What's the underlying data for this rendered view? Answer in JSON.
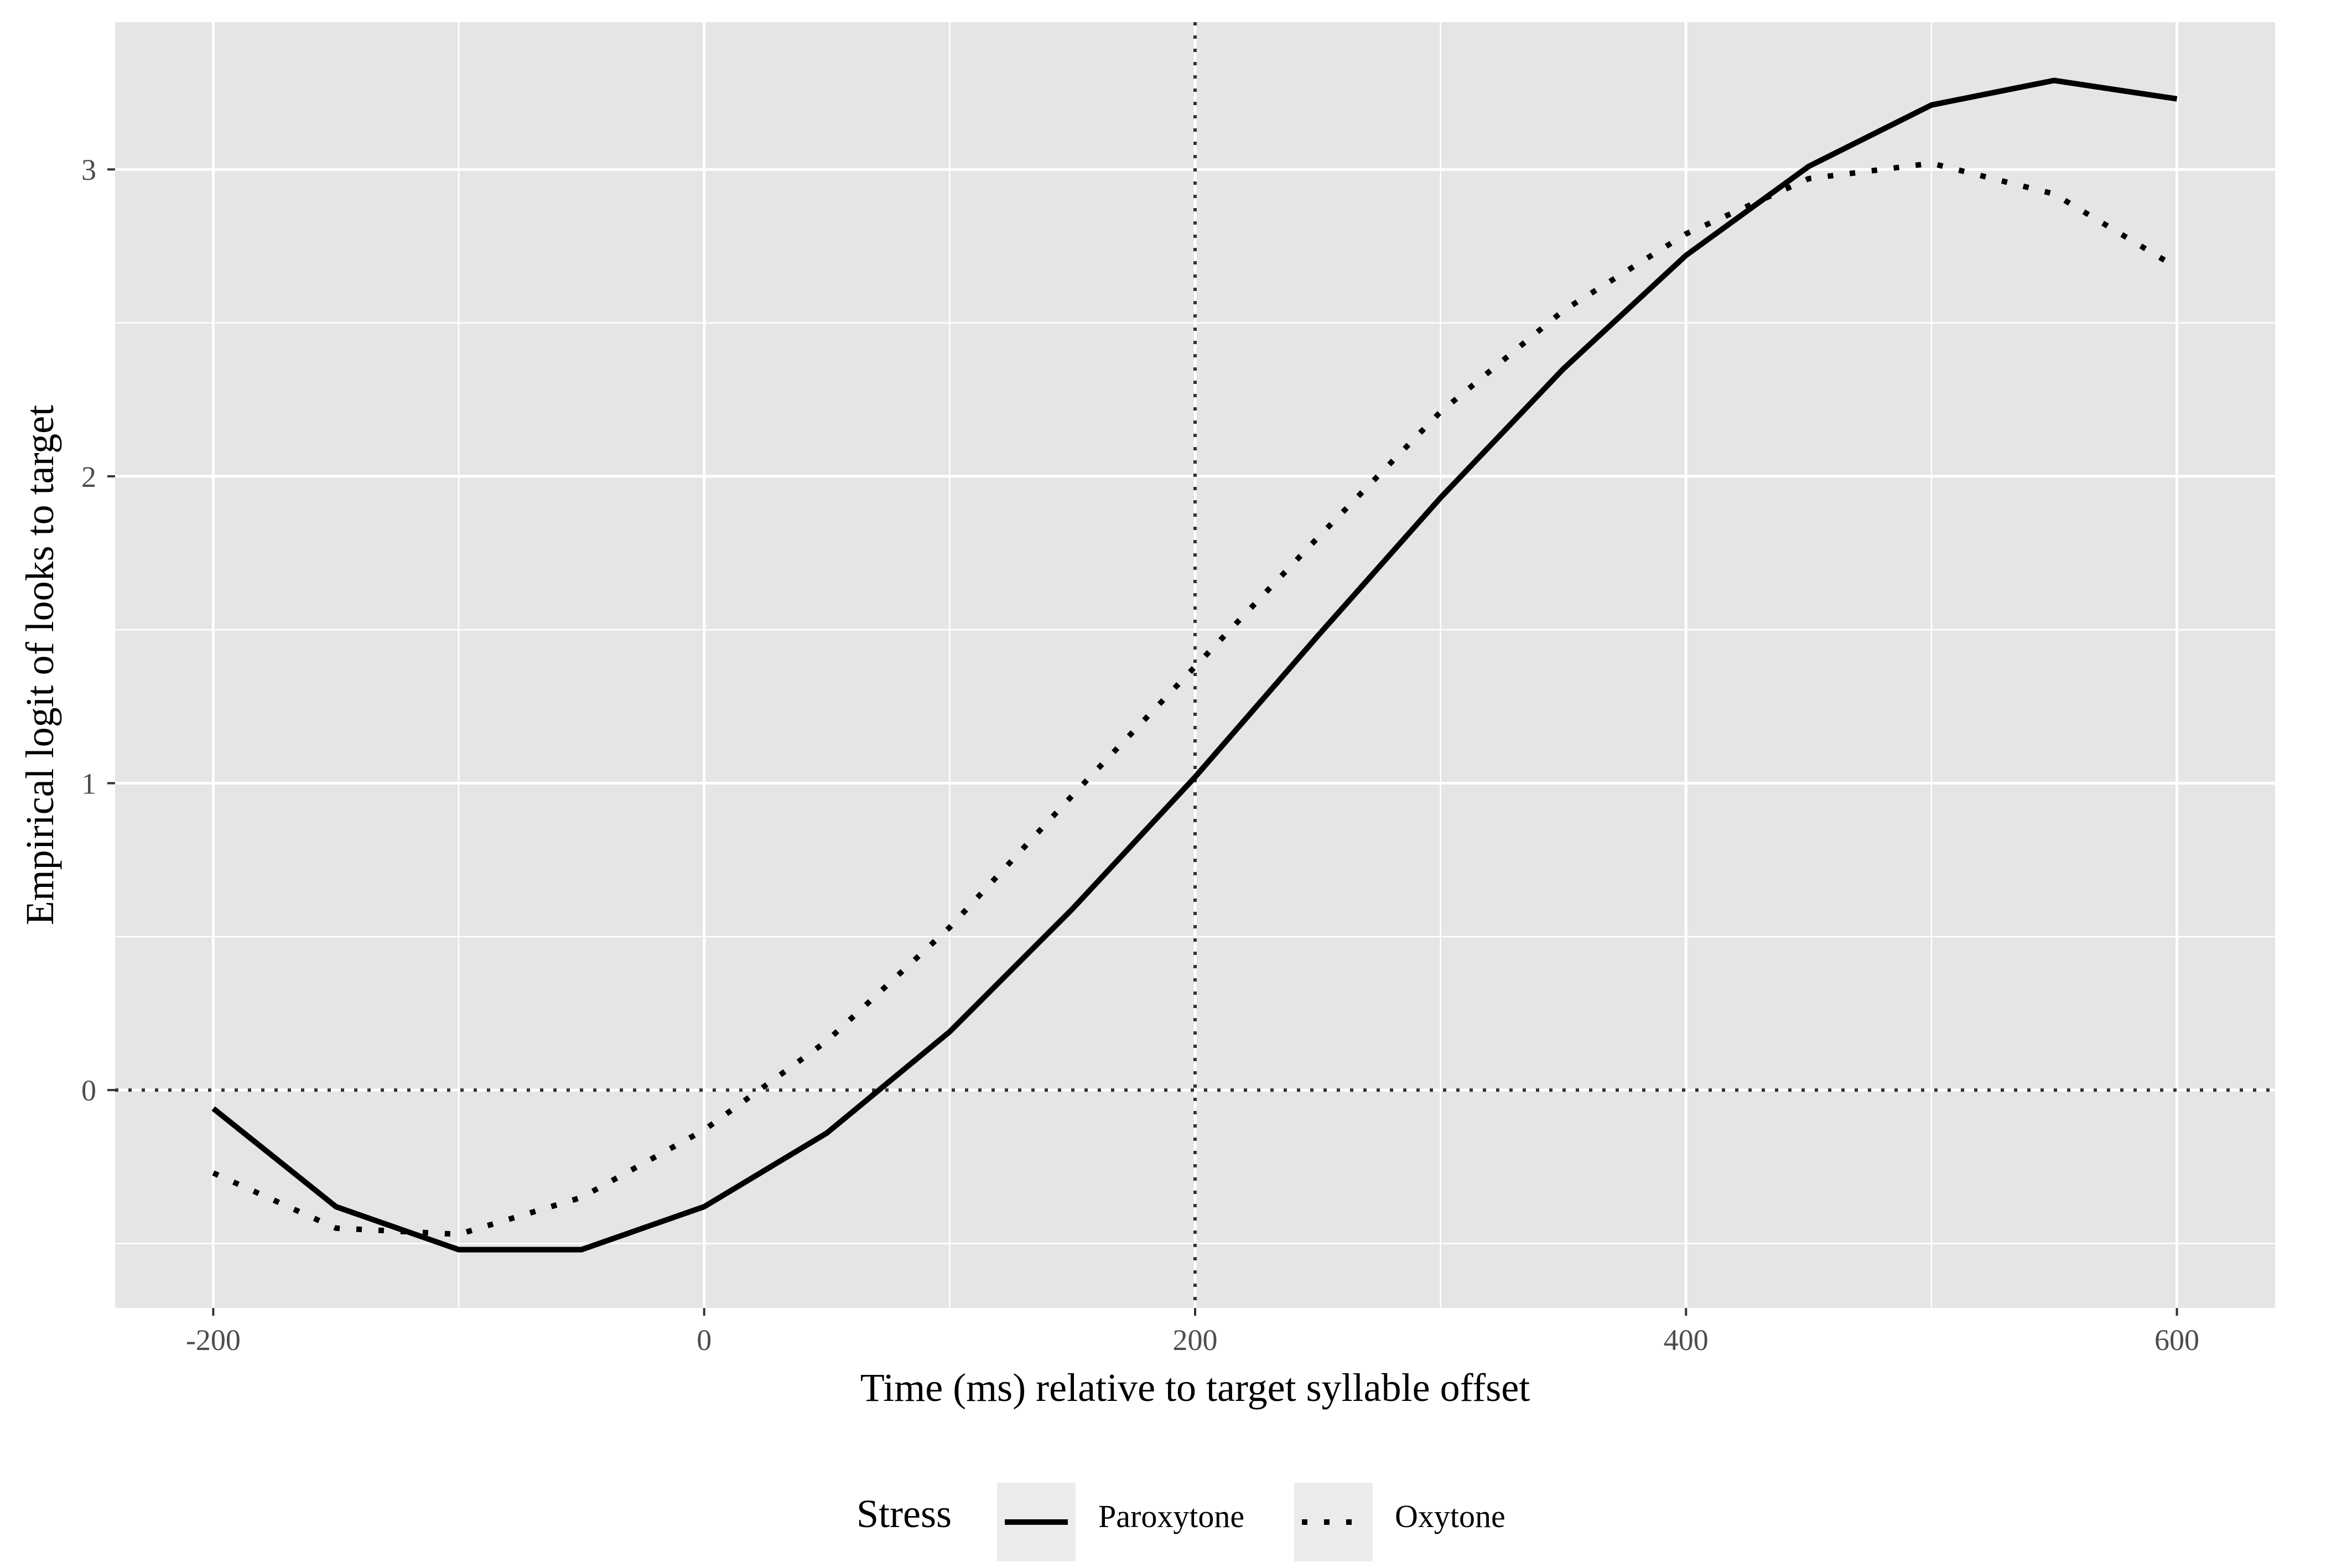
{
  "chart_data": {
    "type": "line",
    "title": "",
    "xlabel": "Time (ms) relative to target syllable offset",
    "ylabel": "Empirical logit of looks to target",
    "xlim": [
      -240,
      640
    ],
    "ylim": [
      -0.71,
      3.48
    ],
    "x_ticks": [
      -200,
      0,
      200,
      400,
      600
    ],
    "x_tick_labels": [
      "-200",
      "0",
      "200",
      "400",
      "600"
    ],
    "y_ticks": [
      0,
      1,
      2,
      3
    ],
    "y_tick_labels": [
      "0",
      "1",
      "2",
      "3"
    ],
    "grid": true,
    "reference_lines": [
      {
        "axis": "x",
        "value": 200,
        "style": "dotted"
      },
      {
        "axis": "y",
        "value": 0,
        "style": "dotted"
      }
    ],
    "legend": {
      "title": "Stress",
      "position": "bottom"
    },
    "series": [
      {
        "name": "Paroxytone",
        "line_style": "solid",
        "color": "#000000",
        "x": [
          -200,
          -150,
          -100,
          -50,
          0,
          50,
          100,
          150,
          200,
          250,
          300,
          350,
          400,
          450,
          500,
          550,
          600
        ],
        "y": [
          -0.06,
          -0.38,
          -0.52,
          -0.52,
          -0.38,
          -0.14,
          0.19,
          0.59,
          1.02,
          1.48,
          1.93,
          2.35,
          2.72,
          3.01,
          3.21,
          3.29,
          3.23
        ]
      },
      {
        "name": "Oxytone",
        "line_style": "dotted",
        "color": "#000000",
        "x": [
          -200,
          -150,
          -100,
          -50,
          0,
          50,
          100,
          150,
          200,
          250,
          300,
          350,
          400,
          450,
          500,
          550,
          600
        ],
        "y": [
          -0.27,
          -0.45,
          -0.47,
          -0.35,
          -0.13,
          0.16,
          0.53,
          0.96,
          1.38,
          1.8,
          2.21,
          2.54,
          2.79,
          2.97,
          3.02,
          2.92,
          2.68
        ]
      }
    ]
  },
  "colors": {
    "panel_background": "#e5e5e5",
    "grid": "#ffffff",
    "reference_line": "#333333",
    "legend_key_background": "#ebebeb"
  }
}
